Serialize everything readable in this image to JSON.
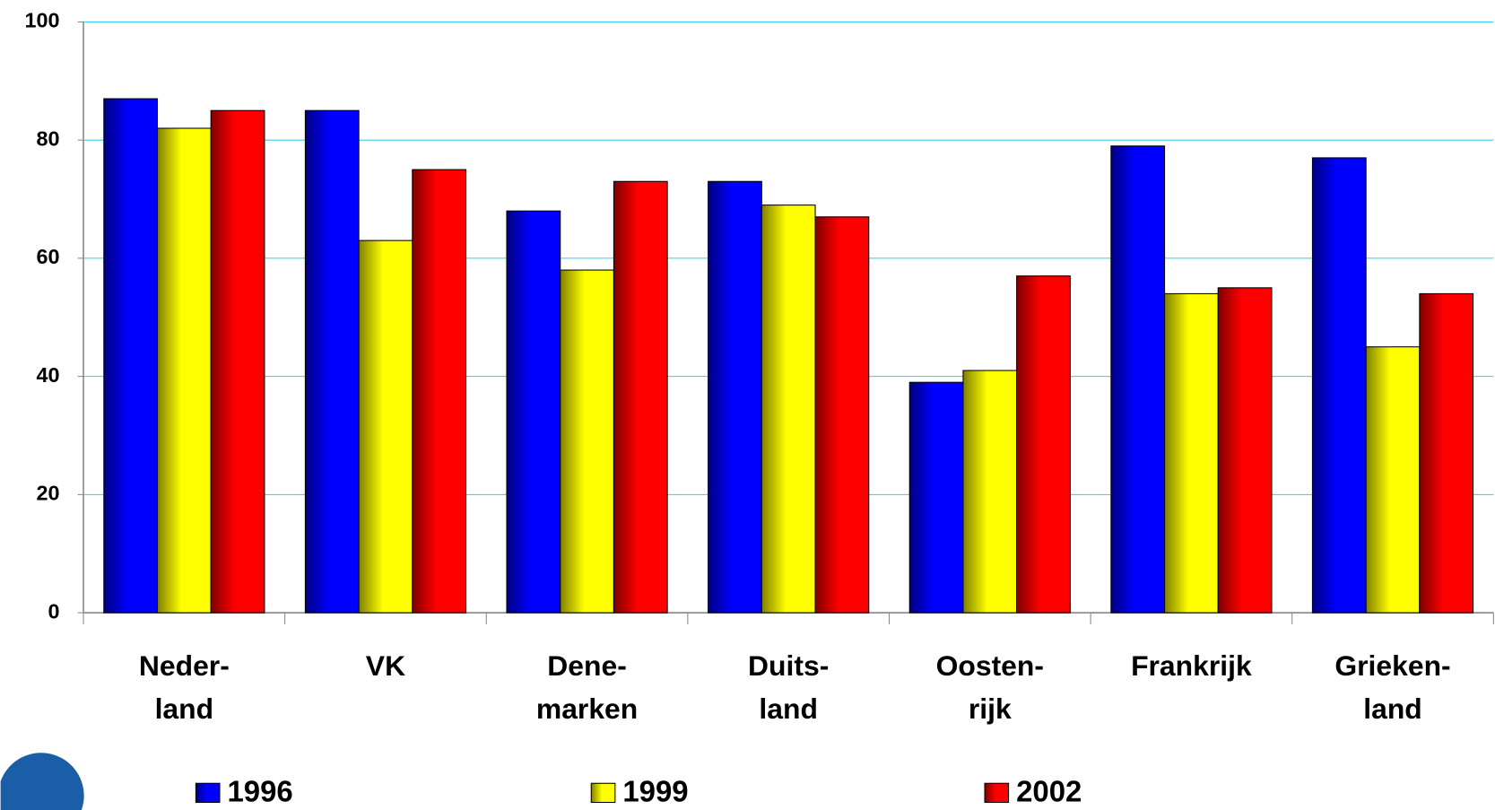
{
  "chart_data": {
    "type": "bar",
    "categories": [
      "Neder-\nland",
      "VK",
      "Dene-\nmarken",
      "Duits-\nland",
      "Oosten-\nrijk",
      "Frankrijk",
      "Grieken-\nland"
    ],
    "series": [
      {
        "name": "1996",
        "color": "#0000ff",
        "values": [
          87,
          85,
          68,
          73,
          39,
          79,
          77
        ]
      },
      {
        "name": "1999",
        "color": "#ffff00",
        "values": [
          82,
          63,
          58,
          69,
          41,
          54,
          45
        ]
      },
      {
        "name": "2002",
        "color": "#ff0000",
        "values": [
          85,
          75,
          73,
          67,
          57,
          55,
          54
        ]
      }
    ],
    "ylim": [
      0,
      100
    ],
    "yticks": [
      0,
      20,
      40,
      60,
      80,
      100
    ],
    "grid": true,
    "legend": "bottom"
  }
}
